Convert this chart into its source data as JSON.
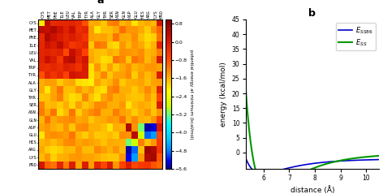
{
  "amino_acids": [
    "CYS",
    "MET",
    "PHE",
    "ILE",
    "LEU",
    "VAL",
    "TRP",
    "TYR",
    "ALA",
    "GLY",
    "THR",
    "SER",
    "ASN",
    "GLN",
    "ASP",
    "GLU",
    "HIS",
    "ARG",
    "LYS",
    "PRO"
  ],
  "title_a": "a",
  "title_b": "b",
  "colorbar_ticks": [
    0.8,
    0.0,
    -0.8,
    -1.6,
    -2.4,
    -3.2,
    -4.0,
    -4.8,
    -5.6
  ],
  "colorbar_label": "potential energy at minimum (kcal/mol)",
  "line_label_ss86": "$E_{SS86}$",
  "line_label_ss": "$E_{SS}$",
  "line_color_ss86": "#0000cc",
  "line_color_ss": "#009900",
  "xlabel_b": "distance (Å)",
  "ylabel_b": "energy (kcal/mol)",
  "ylim_b": [
    -5.5,
    45
  ],
  "xlim_b": [
    5.3,
    10.5
  ],
  "yticks_b": [
    0,
    5,
    10,
    15,
    20,
    25,
    30,
    35,
    40,
    45
  ],
  "xticks_b": [
    6,
    7,
    8,
    9,
    10
  ],
  "background_color": "#ffffff"
}
